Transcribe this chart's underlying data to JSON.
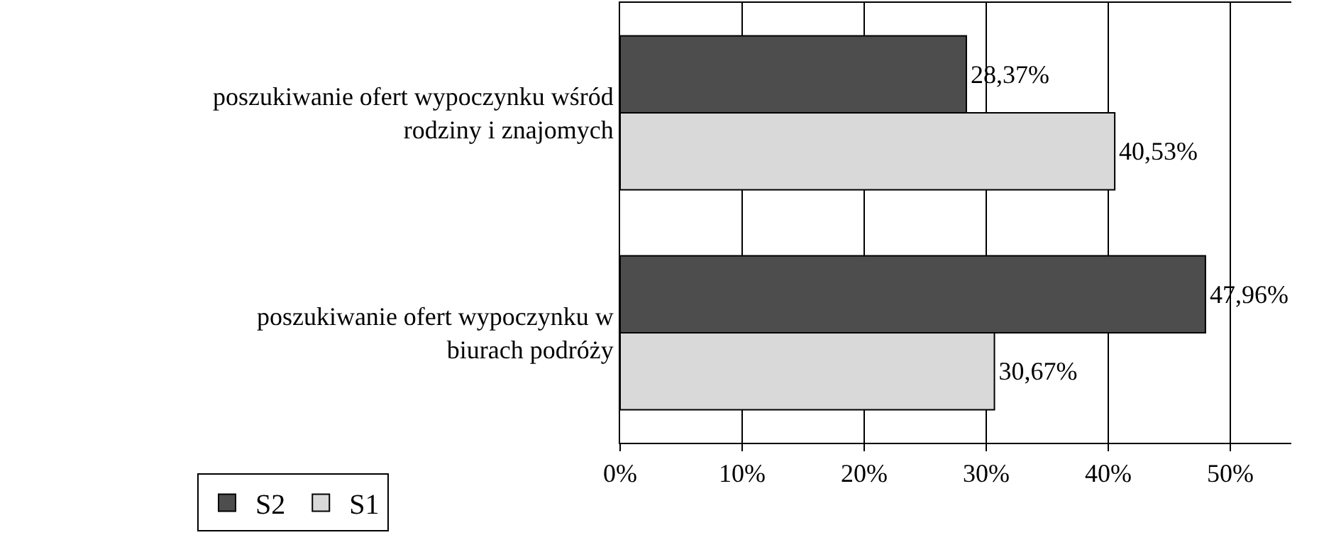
{
  "chart_data": {
    "type": "bar",
    "orientation": "horizontal",
    "categories": [
      "poszukiwanie ofert wypoczynku wśród rodziny i znajomych",
      "poszukiwanie ofert wypoczynku w biurach podróży"
    ],
    "series": [
      {
        "name": "S2",
        "color": "#4d4d4d",
        "values": [
          28.37,
          47.96
        ],
        "value_labels": [
          "28,37%",
          "47,96%"
        ]
      },
      {
        "name": "S1",
        "color": "#d9d9d9",
        "values": [
          40.53,
          30.67
        ],
        "value_labels": [
          "40,53%",
          "30,67%"
        ]
      }
    ],
    "xlim": [
      0,
      55
    ],
    "xticks": [
      {
        "value": 0,
        "label": "0%"
      },
      {
        "value": 10,
        "label": "10%"
      },
      {
        "value": 20,
        "label": "20%"
      },
      {
        "value": 30,
        "label": "30%"
      },
      {
        "value": 40,
        "label": "40%"
      },
      {
        "value": 50,
        "label": "50%"
      }
    ],
    "grid": "x",
    "legend": "bottom left"
  }
}
